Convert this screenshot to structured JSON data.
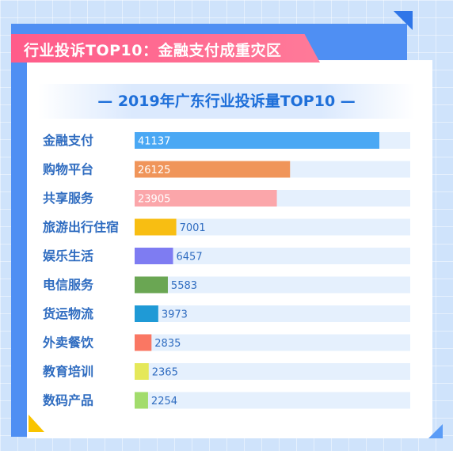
{
  "header": {
    "banner_title": "行业投诉TOP10：金融支付成重灾区",
    "chart_title": "— 2019年广东行业投诉量TOP10 —"
  },
  "chart_data": {
    "type": "bar",
    "orientation": "horizontal",
    "title": "— 2019年广东行业投诉量TOP10 —",
    "categories": [
      "金融支付",
      "购物平台",
      "共享服务",
      "旅游出行住宿",
      "娱乐生活",
      "电信服务",
      "货运物流",
      "外卖餐饮",
      "教育培训",
      "数码产品"
    ],
    "values": [
      41137,
      26125,
      23905,
      7001,
      6457,
      5583,
      3973,
      2835,
      2365,
      2254
    ],
    "colors": [
      "#4aa8f4",
      "#f0955a",
      "#fba6aa",
      "#f8be12",
      "#7e7cf2",
      "#6aa653",
      "#1f9ad6",
      "#fa7763",
      "#e5e85a",
      "#a2dc6c"
    ],
    "track_color": "#e5f0fd",
    "label_color": "#2f6cc0",
    "xlim": [
      0,
      45000
    ],
    "grid": false,
    "legend": "none"
  }
}
